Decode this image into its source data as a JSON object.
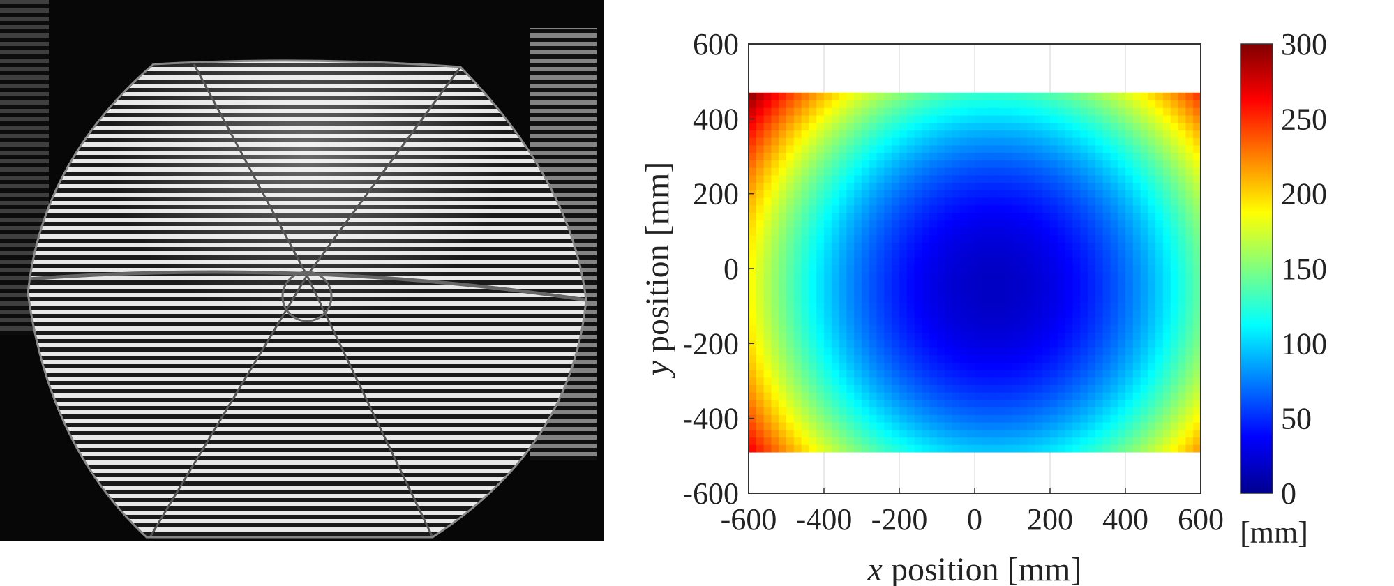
{
  "left_panel": {
    "description_icon": "fringe-projection-photo"
  },
  "chart_data": {
    "type": "heatmap",
    "xlabel_var": "x",
    "xlabel_rest": " position [mm]",
    "ylabel_var": "y",
    "ylabel_rest": " position [mm]",
    "xlim": [
      -600,
      600
    ],
    "ylim": [
      -600,
      600
    ],
    "x_ticks": [
      "-600",
      "-400",
      "-200",
      "0",
      "200",
      "400",
      "600"
    ],
    "y_ticks": [
      "600",
      "400",
      "200",
      "0",
      "-200",
      "-400",
      "-600"
    ],
    "grid": true,
    "colorbar": {
      "range": [
        0,
        300
      ],
      "ticks": [
        "300",
        "250",
        "200",
        "150",
        "100",
        "50",
        "0"
      ],
      "unit": "[mm]",
      "colormap": "jet"
    },
    "data_extent": {
      "x": [
        -600,
        600
      ],
      "y": [
        -490,
        470
      ]
    },
    "surface": {
      "description": "radial height map, minimum ~20 mm near (50, -50), rising to ~300 mm at corners",
      "center_value": 20,
      "corner_value": 300,
      "center": [
        50,
        -50
      ]
    }
  }
}
